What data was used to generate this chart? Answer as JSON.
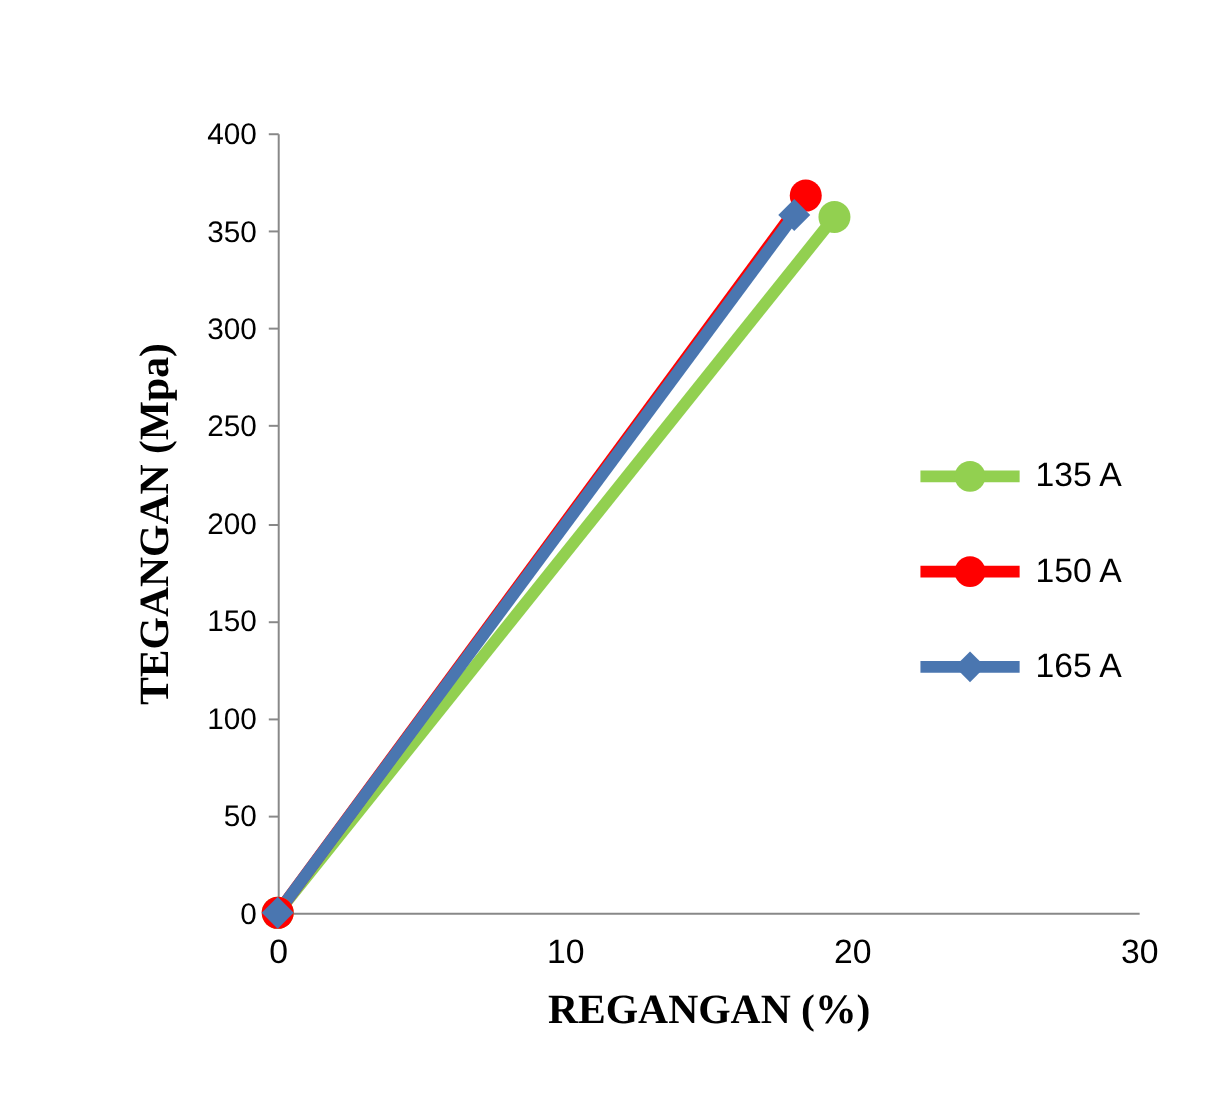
{
  "chart_data": {
    "type": "line",
    "xlabel": "REGANGAN (%)",
    "ylabel": "TEGANGAN (Mpa)",
    "xlim": [
      0,
      30
    ],
    "xticks": [
      0,
      10,
      20,
      30
    ],
    "ylim": [
      0,
      400
    ],
    "yticks": [
      0,
      50,
      100,
      150,
      200,
      250,
      300,
      350,
      400
    ],
    "grid": false,
    "legend": "right",
    "series": [
      {
        "name": "135 A",
        "color": "#92d050",
        "marker": "circle",
        "x": [
          0,
          19.4
        ],
        "values": [
          0,
          357
        ]
      },
      {
        "name": "150 A",
        "color": "#ff0000",
        "marker": "circle",
        "x": [
          0,
          18.4
        ],
        "values": [
          0,
          368
        ]
      },
      {
        "name": "165 A",
        "color": "#4a76b0",
        "marker": "diamond",
        "x": [
          0,
          18.0
        ],
        "values": [
          0,
          358
        ]
      }
    ]
  }
}
